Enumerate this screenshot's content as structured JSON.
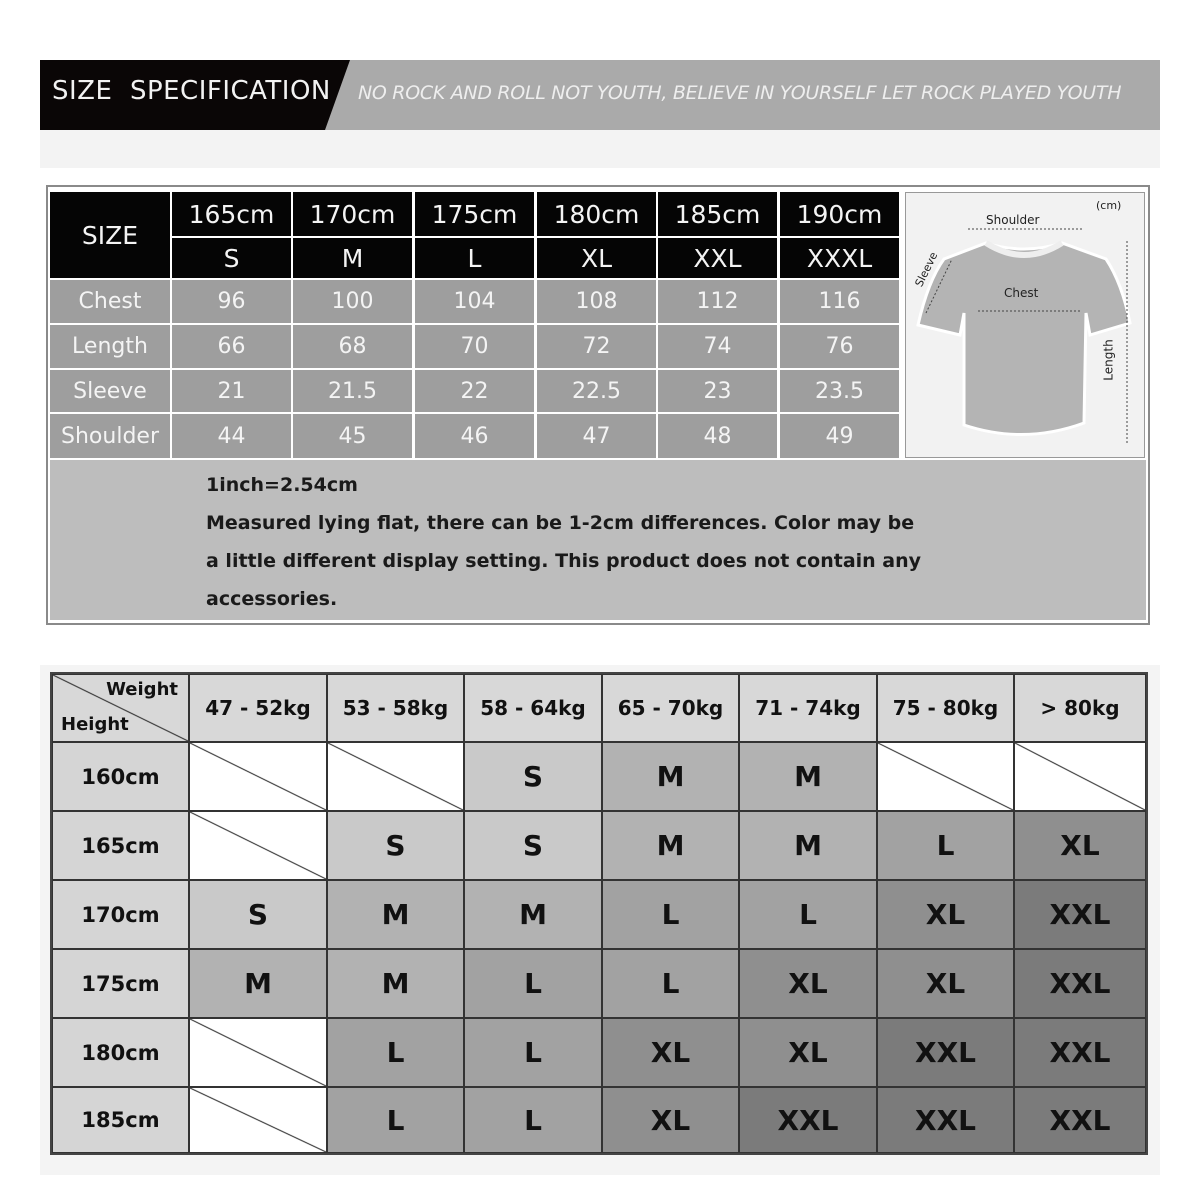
{
  "banner": {
    "title": "SIZE  SPECIFICATION",
    "slogan": "NO ROCK AND ROLL NOT YOUTH, BELIEVE IN YOURSELF LET ROCK PLAYED YOUTH"
  },
  "spec": {
    "corner_label": "SIZE",
    "heights": [
      "165cm",
      "170cm",
      "175cm",
      "180cm",
      "185cm",
      "190cm"
    ],
    "sizes": [
      "S",
      "M",
      "L",
      "XL",
      "XXL",
      "XXXL"
    ],
    "rows": [
      {
        "label": "Chest",
        "values": [
          "96",
          "100",
          "104",
          "108",
          "112",
          "116"
        ]
      },
      {
        "label": "Length",
        "values": [
          "66",
          "68",
          "70",
          "72",
          "74",
          "76"
        ]
      },
      {
        "label": "Sleeve",
        "values": [
          "21",
          "21.5",
          "22",
          "22.5",
          "23",
          "23.5"
        ]
      },
      {
        "label": "Shoulder",
        "values": [
          "44",
          "45",
          "46",
          "47",
          "48",
          "49"
        ]
      }
    ]
  },
  "diagram": {
    "unit": "(cm)",
    "shoulder": "Shoulder",
    "chest": "Chest",
    "sleeve": "Sleeve",
    "length": "Length"
  },
  "notes": {
    "line1": "1inch=2.54cm",
    "line2": "Measured lying flat, there can be 1-2cm differences. Color may be",
    "line3": "a little different display setting. This product does not contain any",
    "line4": "accessories."
  },
  "fit": {
    "corner_top": "Weight",
    "corner_bottom": "Height",
    "weights": [
      "47 - 52kg",
      "53 - 58kg",
      "58 - 64kg",
      "65 - 70kg",
      "71 - 74kg",
      "75 - 80kg",
      "> 80kg"
    ],
    "rows": [
      {
        "height": "160cm",
        "sizes": [
          "",
          "",
          "S",
          "M",
          "M",
          "",
          ""
        ]
      },
      {
        "height": "165cm",
        "sizes": [
          "",
          "S",
          "S",
          "M",
          "M",
          "L",
          "XL"
        ]
      },
      {
        "height": "170cm",
        "sizes": [
          "S",
          "M",
          "M",
          "L",
          "L",
          "XL",
          "XXL"
        ]
      },
      {
        "height": "175cm",
        "sizes": [
          "M",
          "M",
          "L",
          "L",
          "XL",
          "XL",
          "XXL"
        ]
      },
      {
        "height": "180cm",
        "sizes": [
          "",
          "L",
          "L",
          "XL",
          "XL",
          "XXL",
          "XXL"
        ]
      },
      {
        "height": "185cm",
        "sizes": [
          "",
          "L",
          "L",
          "XL",
          "XXL",
          "XXL",
          "XXL"
        ]
      }
    ],
    "size_colors": {
      "S": "#c9c9c9",
      "M": "#b2b2b2",
      "L": "#a2a2a2",
      "XL": "#8f8f8f",
      "XXL": "#7b7b7b"
    }
  }
}
